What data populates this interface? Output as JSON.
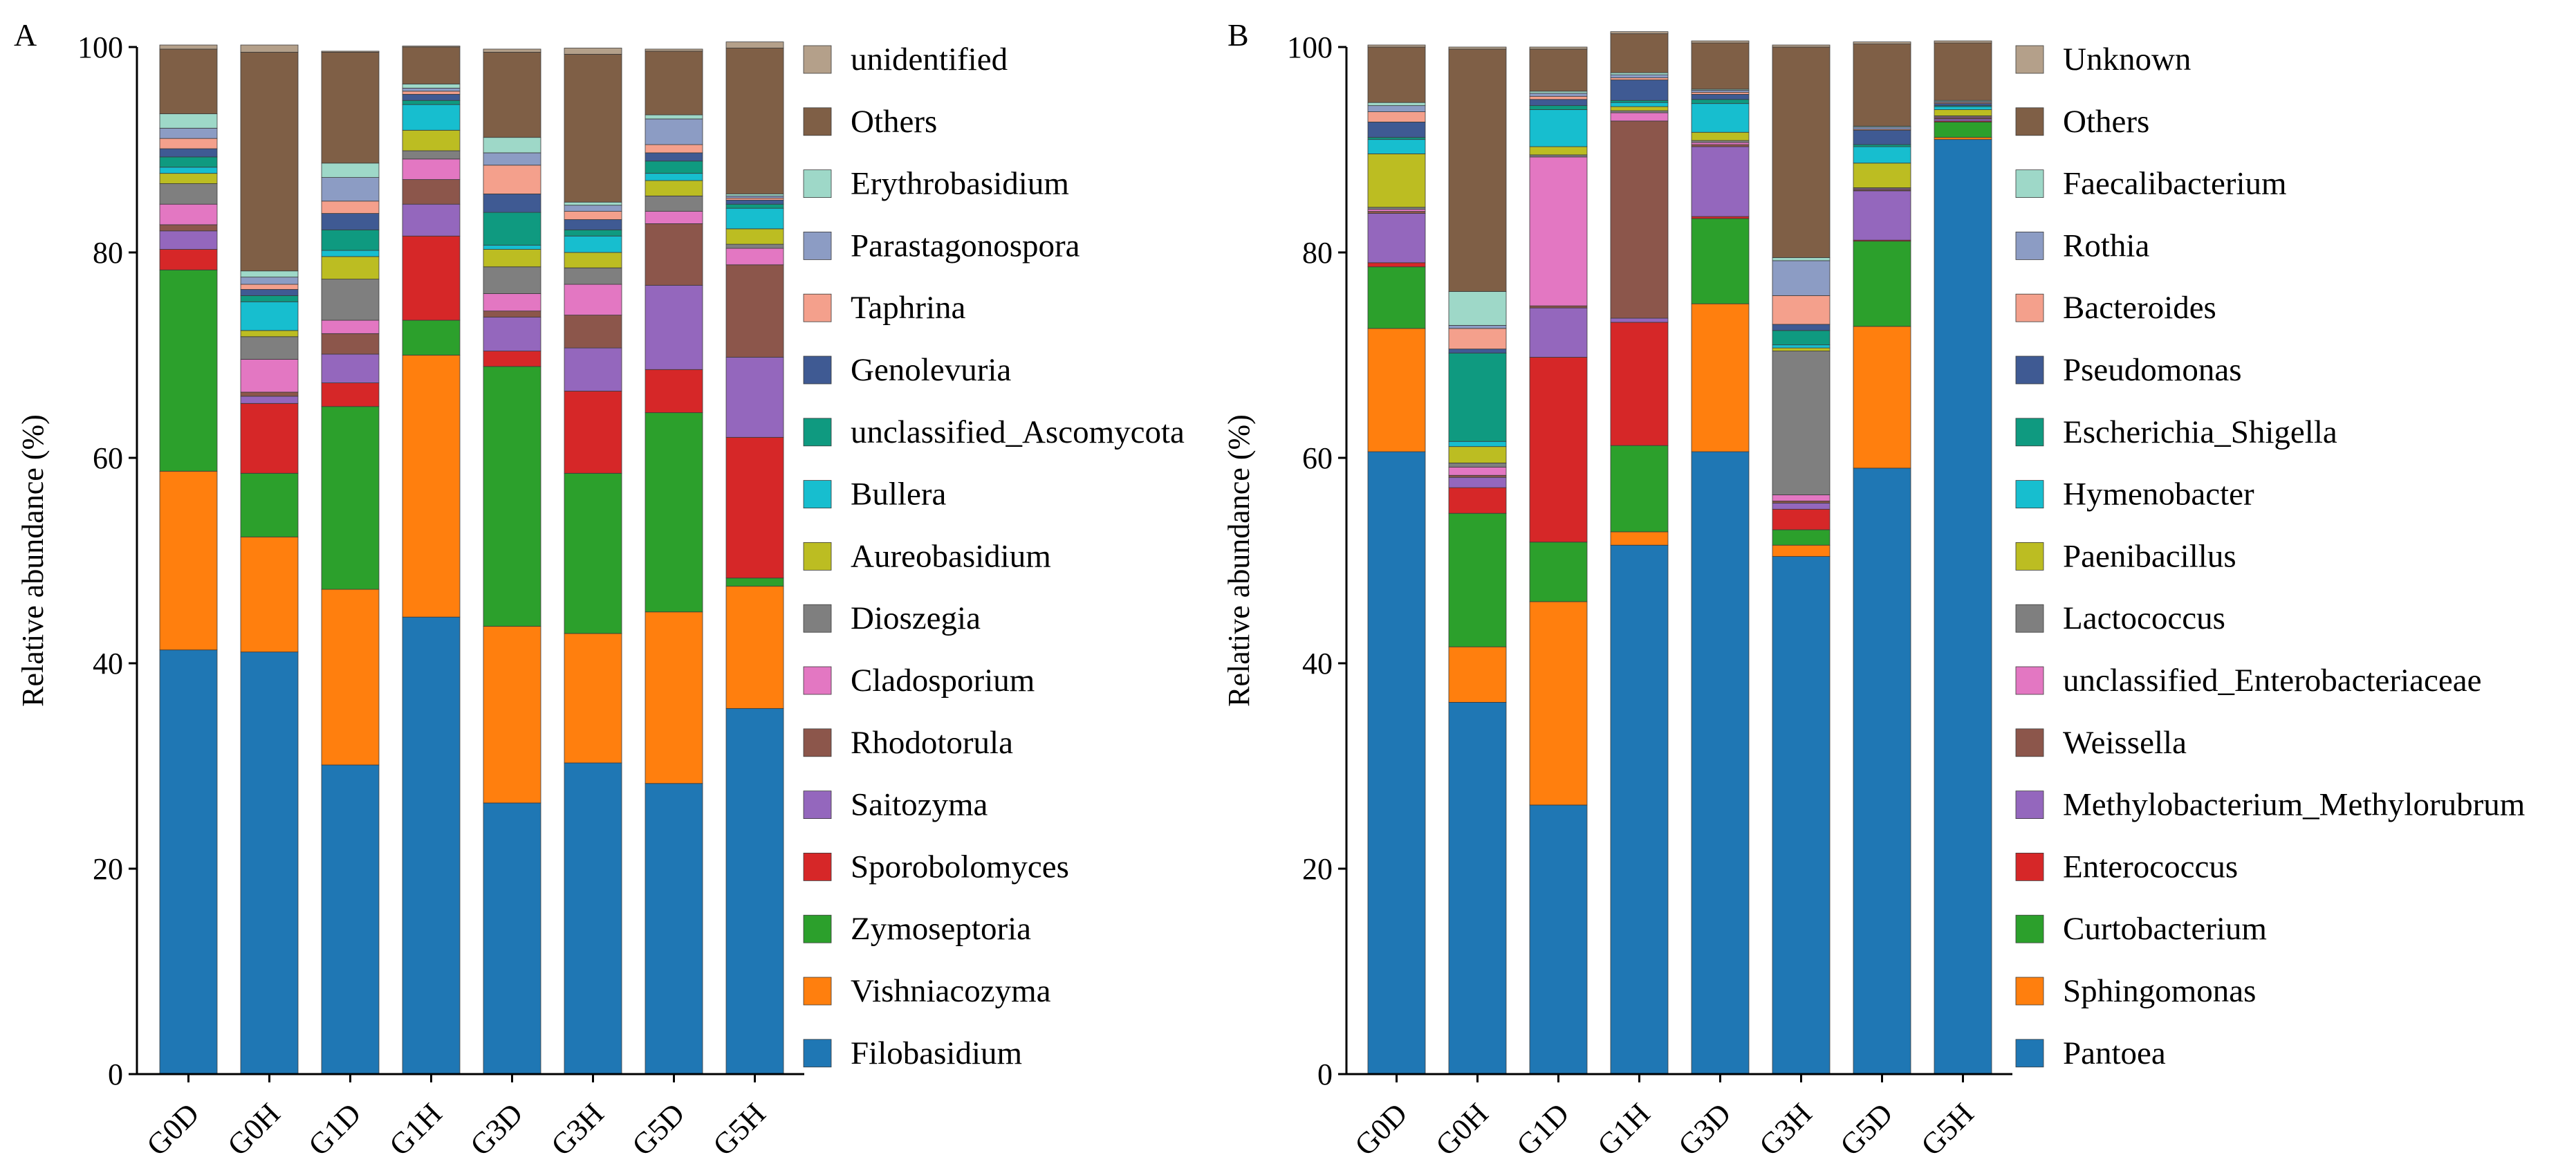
{
  "chart_data": [
    {
      "panel_label": "A",
      "type": "bar",
      "stacked": true,
      "ylabel": "Relative abundance (%)",
      "xlabel": "",
      "ylim": [
        0,
        100
      ],
      "yticks": [
        0,
        20,
        40,
        60,
        80,
        100
      ],
      "categories": [
        "G0D",
        "G0H",
        "G1D",
        "G1H",
        "G3D",
        "G3H",
        "G5D",
        "G5H"
      ],
      "legend_position": "right",
      "series": [
        {
          "name": "Filobasidium",
          "color": "#1f77b4",
          "values": [
            41.3,
            41.1,
            30.1,
            44.5,
            26.4,
            30.3,
            28.3,
            35.6
          ]
        },
        {
          "name": "Vishniacozyma",
          "color": "#ff7f0e",
          "values": [
            17.4,
            11.2,
            17.1,
            25.5,
            17.2,
            12.6,
            16.7,
            11.9
          ]
        },
        {
          "name": "Zymoseptoria",
          "color": "#2ca02c",
          "values": [
            19.6,
            6.2,
            17.8,
            3.4,
            25.3,
            15.6,
            19.4,
            0.8
          ]
        },
        {
          "name": "Sporobolomyces",
          "color": "#d62728",
          "values": [
            2.0,
            6.8,
            2.3,
            8.2,
            1.5,
            8.0,
            4.2,
            13.7
          ]
        },
        {
          "name": "Saitozyma",
          "color": "#9467bd",
          "values": [
            1.8,
            0.7,
            2.8,
            3.1,
            3.3,
            4.2,
            8.2,
            7.8
          ]
        },
        {
          "name": "Rhodotorula",
          "color": "#8c564b",
          "values": [
            0.6,
            0.4,
            2.0,
            2.4,
            0.6,
            3.2,
            6.0,
            9.0
          ]
        },
        {
          "name": "Cladosporium",
          "color": "#e377c2",
          "values": [
            2.0,
            3.2,
            1.3,
            2.0,
            1.7,
            3.0,
            1.2,
            1.6
          ]
        },
        {
          "name": "Dioszegia",
          "color": "#7f7f7f",
          "values": [
            2.0,
            2.2,
            4.0,
            0.8,
            2.6,
            1.6,
            1.5,
            0.4
          ]
        },
        {
          "name": "Aureobasidium",
          "color": "#bcbd22",
          "values": [
            1.0,
            0.6,
            2.2,
            2.0,
            1.7,
            1.5,
            1.5,
            1.5
          ]
        },
        {
          "name": "Bullera",
          "color": "#17becf",
          "values": [
            0.6,
            2.8,
            0.6,
            2.5,
            0.4,
            1.6,
            0.7,
            2.0
          ]
        },
        {
          "name": "unclassified_Ascomycota",
          "color": "#0f9a80",
          "values": [
            1.0,
            0.6,
            2.0,
            0.4,
            3.2,
            0.6,
            1.2,
            0.4
          ]
        },
        {
          "name": "Genolevuria",
          "color": "#3f5a93",
          "values": [
            0.8,
            0.6,
            1.6,
            0.6,
            1.8,
            1.0,
            0.8,
            0.4
          ]
        },
        {
          "name": "Taphrina",
          "color": "#f4a08c",
          "values": [
            1.0,
            0.5,
            1.2,
            0.3,
            2.8,
            0.8,
            0.8,
            0.2
          ]
        },
        {
          "name": "Parastagonospora",
          "color": "#8c9cc4",
          "values": [
            1.0,
            0.7,
            2.3,
            0.3,
            1.2,
            0.6,
            2.5,
            0.2
          ]
        },
        {
          "name": "Erythrobasidium",
          "color": "#9ed8c8",
          "values": [
            1.4,
            0.6,
            1.4,
            0.4,
            1.5,
            0.3,
            0.4,
            0.2
          ]
        },
        {
          "name": "Others",
          "color": "#7f5f46",
          "values": [
            6.3,
            21.3,
            10.8,
            3.6,
            8.3,
            14.4,
            6.2,
            14.2
          ]
        },
        {
          "name": "unidentified",
          "color": "#b4a08a",
          "values": [
            0.4,
            0.7,
            0.1,
            0.1,
            0.3,
            0.6,
            0.2,
            0.6
          ]
        }
      ]
    },
    {
      "panel_label": "B",
      "type": "bar",
      "stacked": true,
      "ylabel": "Relative abundance (%)",
      "xlabel": "",
      "ylim": [
        0,
        100
      ],
      "yticks": [
        0,
        20,
        40,
        60,
        80,
        100
      ],
      "categories": [
        "G0D",
        "G0H",
        "G1D",
        "G1H",
        "G3D",
        "G3H",
        "G5D",
        "G5H"
      ],
      "legend_position": "right",
      "series": [
        {
          "name": "Pantoea",
          "color": "#1f77b4",
          "values": [
            60.6,
            36.2,
            26.2,
            51.5,
            60.6,
            50.4,
            59.0,
            91.0
          ]
        },
        {
          "name": "Sphingomonas",
          "color": "#ff7f0e",
          "values": [
            12.0,
            5.4,
            19.8,
            1.3,
            14.4,
            1.1,
            13.8,
            0.2
          ]
        },
        {
          "name": "Curtobacterium",
          "color": "#2ca02c",
          "values": [
            6.0,
            13.0,
            5.8,
            8.4,
            8.3,
            1.5,
            8.3,
            1.5
          ]
        },
        {
          "name": "Enterococcus",
          "color": "#d62728",
          "values": [
            0.4,
            2.5,
            18.0,
            12.0,
            0.2,
            2.0,
            0.1,
            0.1
          ]
        },
        {
          "name": "Methylobacterium_Methylorubrum",
          "color": "#9467bd",
          "values": [
            4.8,
            1.0,
            4.8,
            0.4,
            6.8,
            0.6,
            4.8,
            0.2
          ]
        },
        {
          "name": "Weissella",
          "color": "#8c564b",
          "values": [
            0.2,
            0.2,
            0.2,
            19.2,
            0.2,
            0.2,
            0.1,
            0.1
          ]
        },
        {
          "name": "unclassified_Enterobacteriaceae",
          "color": "#e377c2",
          "values": [
            0.2,
            0.8,
            14.5,
            0.8,
            0.2,
            0.6,
            0.1,
            0.1
          ]
        },
        {
          "name": "Lactococcus",
          "color": "#7f7f7f",
          "values": [
            0.2,
            0.4,
            0.2,
            0.2,
            0.2,
            14.0,
            0.1,
            0.1
          ]
        },
        {
          "name": "Paenibacillus",
          "color": "#bcbd22",
          "values": [
            5.2,
            1.6,
            0.8,
            0.4,
            0.8,
            0.3,
            2.4,
            0.6
          ]
        },
        {
          "name": "Hymenobacter",
          "color": "#17becf",
          "values": [
            1.4,
            0.5,
            3.6,
            0.4,
            2.8,
            0.3,
            1.6,
            0.3
          ]
        },
        {
          "name": "Escherichia_Shigella",
          "color": "#0f9a80",
          "values": [
            0.2,
            8.6,
            0.4,
            0.2,
            0.4,
            1.4,
            0.2,
            0.1
          ]
        },
        {
          "name": "Pseudomonas",
          "color": "#3f5a93",
          "values": [
            1.5,
            0.4,
            0.6,
            2.0,
            0.5,
            0.6,
            1.4,
            0.2
          ]
        },
        {
          "name": "Bacteroides",
          "color": "#f4a08c",
          "values": [
            1.0,
            2.0,
            0.3,
            0.2,
            0.2,
            2.8,
            0.1,
            0.1
          ]
        },
        {
          "name": "Rothia",
          "color": "#8c9cc4",
          "values": [
            0.6,
            0.3,
            0.3,
            0.3,
            0.2,
            3.4,
            0.2,
            0.1
          ]
        },
        {
          "name": "Faecalibacterium",
          "color": "#9ed8c8",
          "values": [
            0.3,
            3.3,
            0.2,
            0.2,
            0.1,
            0.3,
            0.1,
            0.1
          ]
        },
        {
          "name": "Others",
          "color": "#7f5f46",
          "values": [
            5.4,
            23.6,
            4.1,
            3.8,
            4.5,
            20.5,
            8.0,
            5.6
          ]
        },
        {
          "name": "Unknown",
          "color": "#b4a08a",
          "values": [
            0.2,
            0.2,
            0.2,
            0.2,
            0.2,
            0.2,
            0.2,
            0.2
          ]
        }
      ]
    }
  ]
}
